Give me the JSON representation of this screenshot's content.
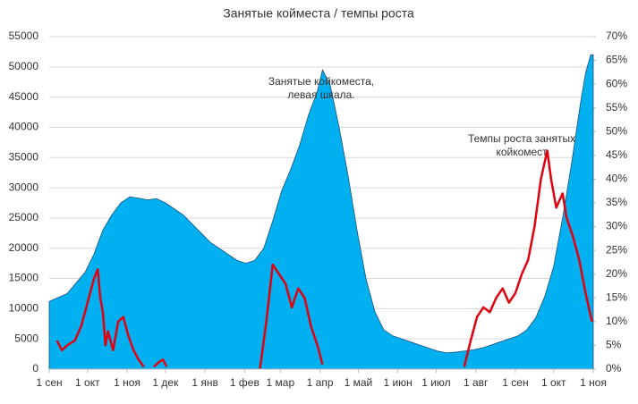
{
  "chart_data": {
    "type": "area-line",
    "title": "Занятые койместа / темпы роста",
    "annotations": [
      {
        "lines": [
          "Занятые койкоместа,",
          "левая шкала."
        ],
        "x": 213,
        "y": 47500
      },
      {
        "lines": [
          "Темпы роста занятых",
          "койкомест"
        ],
        "x": 370,
        "y": 38000
      }
    ],
    "xlim": [
      0,
      426
    ],
    "xticks": [
      {
        "value": 0,
        "label": "1 сен"
      },
      {
        "value": 30,
        "label": "1 окт"
      },
      {
        "value": 61,
        "label": "1 ноя"
      },
      {
        "value": 91,
        "label": "1 дек"
      },
      {
        "value": 122,
        "label": "1 янв"
      },
      {
        "value": 153,
        "label": "1 фев"
      },
      {
        "value": 181,
        "label": "1 мар"
      },
      {
        "value": 212,
        "label": "1 апр"
      },
      {
        "value": 242,
        "label": "1 май"
      },
      {
        "value": 273,
        "label": "1 июн"
      },
      {
        "value": 303,
        "label": "1 июл"
      },
      {
        "value": 334,
        "label": "1 авг"
      },
      {
        "value": 365,
        "label": "1 сен"
      },
      {
        "value": 395,
        "label": "1 окт"
      },
      {
        "value": 426,
        "label": "1 ноя"
      }
    ],
    "ylim": [
      0,
      55000
    ],
    "yticks": [
      0,
      5000,
      10000,
      15000,
      20000,
      25000,
      30000,
      35000,
      40000,
      45000,
      50000,
      55000
    ],
    "y2lim": [
      0,
      70
    ],
    "y2ticks": [
      {
        "value": 0,
        "label": "0%"
      },
      {
        "value": 5,
        "label": "5%"
      },
      {
        "value": 10,
        "label": "10%"
      },
      {
        "value": 15,
        "label": "15%"
      },
      {
        "value": 20,
        "label": "20%"
      },
      {
        "value": 25,
        "label": "25%"
      },
      {
        "value": 30,
        "label": "30%"
      },
      {
        "value": 35,
        "label": "35%"
      },
      {
        "value": 40,
        "label": "40%"
      },
      {
        "value": 45,
        "label": "45%"
      },
      {
        "value": 50,
        "label": "50%"
      },
      {
        "value": 55,
        "label": "55%"
      },
      {
        "value": 60,
        "label": "60%"
      },
      {
        "value": 65,
        "label": "65%"
      },
      {
        "value": 70,
        "label": "70%"
      }
    ],
    "grid": true,
    "series": [
      {
        "kind": "area",
        "color": "#00b0f0",
        "x": [
          0,
          14,
          28,
          35,
          42,
          49,
          56,
          63,
          70,
          77,
          84,
          91,
          98,
          105,
          112,
          119,
          126,
          133,
          140,
          147,
          154,
          161,
          168,
          175,
          182,
          189,
          196,
          203,
          210,
          214,
          220,
          227,
          234,
          241,
          248,
          255,
          262,
          269,
          276,
          283,
          290,
          297,
          304,
          311,
          318,
          325,
          332,
          339,
          346,
          353,
          360,
          367,
          374,
          381,
          388,
          395,
          402,
          409,
          416,
          420,
          424,
          426
        ],
        "values": [
          11200,
          12500,
          16000,
          19000,
          23000,
          25500,
          27500,
          28500,
          28300,
          28000,
          28200,
          27500,
          26500,
          25500,
          24000,
          22500,
          21000,
          20000,
          19000,
          18000,
          17500,
          18000,
          20000,
          24500,
          29500,
          33000,
          37000,
          42000,
          46000,
          49500,
          47000,
          40000,
          32000,
          23000,
          15000,
          9500,
          6500,
          5500,
          5000,
          4500,
          4000,
          3500,
          3000,
          2700,
          2800,
          3000,
          3200,
          3500,
          4000,
          4500,
          5000,
          5500,
          6500,
          8500,
          12000,
          17000,
          25000,
          34000,
          44000,
          49000,
          52000,
          52000
        ]
      },
      {
        "kind": "line",
        "color": "#e3000f",
        "axis": "y2",
        "x": [
          6,
          10,
          14,
          20,
          25,
          30,
          35,
          38,
          40,
          42,
          44,
          46,
          50,
          54,
          58,
          62,
          66,
          70,
          74,
          78,
          82,
          86,
          89,
          92,
          160,
          165,
          170,
          175,
          180,
          185,
          190,
          195,
          200,
          205,
          210,
          214,
          320,
          325,
          330,
          335,
          340,
          345,
          350,
          355,
          360,
          365,
          370,
          375,
          380,
          385,
          390,
          393,
          397,
          402,
          405,
          410,
          415,
          420,
          425
        ],
        "values": [
          6,
          4,
          5,
          6,
          9,
          14,
          19,
          21,
          15,
          12,
          5,
          8,
          4,
          10,
          11,
          7,
          4,
          2,
          0.5,
          null,
          0.5,
          1.5,
          2,
          0.5,
          null,
          0,
          10,
          22,
          20,
          18,
          13,
          17,
          15,
          9,
          5,
          1,
          null,
          0.5,
          6,
          11,
          13,
          12,
          15,
          17,
          14,
          16,
          20,
          23,
          30,
          40,
          46,
          40,
          34,
          37,
          32,
          28,
          23,
          16,
          10
        ]
      }
    ]
  }
}
